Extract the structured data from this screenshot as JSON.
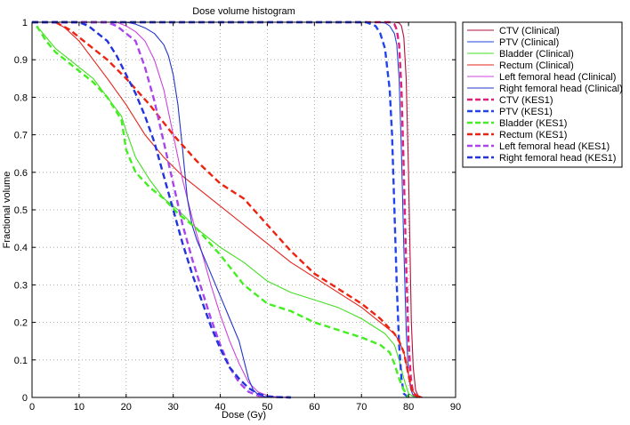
{
  "chart_data": {
    "type": "line",
    "title": "Dose volume histogram",
    "xlabel": "Dose (Gy)",
    "ylabel": "Fractional volume",
    "xlim": [
      0,
      90
    ],
    "ylim": [
      0,
      1
    ],
    "xticks": [
      0,
      10,
      20,
      30,
      40,
      50,
      60,
      70,
      80,
      90
    ],
    "yticks": [
      0,
      0.1,
      0.2,
      0.3,
      0.4,
      0.5,
      0.6,
      0.7,
      0.8,
      0.9,
      1
    ],
    "xtick_labels": [
      "0",
      "10",
      "20",
      "30",
      "40",
      "50",
      "60",
      "70",
      "80",
      "90"
    ],
    "ytick_labels": [
      "0",
      "0.1",
      "0.2",
      "0.3",
      "0.4",
      "0.5",
      "0.6",
      "0.7",
      "0.8",
      "0.9",
      "1"
    ],
    "grid": true,
    "legend_position": "outside-top-right",
    "series": [
      {
        "name": "CTV (Clinical)",
        "color": "#b0103a",
        "style": "solid",
        "x": [
          0,
          77,
          78,
          78.5,
          79,
          79.5,
          80,
          80.3,
          80.6,
          81,
          81.5,
          82,
          83
        ],
        "y": [
          1,
          1,
          0.998,
          0.99,
          0.96,
          0.85,
          0.6,
          0.4,
          0.2,
          0.08,
          0.02,
          0.005,
          0
        ]
      },
      {
        "name": "PTV (Clinical)",
        "color": "#2244dd",
        "style": "solid",
        "x": [
          0,
          73,
          75,
          76,
          77,
          77.5,
          78,
          78.5,
          79,
          79.5,
          80,
          80.5,
          81,
          82
        ],
        "y": [
          1,
          1,
          0.998,
          0.99,
          0.97,
          0.94,
          0.85,
          0.65,
          0.4,
          0.18,
          0.06,
          0.02,
          0.005,
          0
        ]
      },
      {
        "name": "Bladder (Clinical)",
        "color": "#44dd22",
        "style": "solid",
        "x": [
          1,
          3,
          5,
          8,
          10,
          13,
          16,
          19,
          20,
          22,
          25,
          28,
          31,
          35,
          40,
          45,
          50,
          55,
          60,
          65,
          70,
          75,
          77,
          78,
          79,
          80,
          81,
          82
        ],
        "y": [
          0.99,
          0.96,
          0.93,
          0.9,
          0.88,
          0.85,
          0.8,
          0.75,
          0.71,
          0.64,
          0.58,
          0.53,
          0.5,
          0.45,
          0.4,
          0.36,
          0.31,
          0.28,
          0.26,
          0.24,
          0.21,
          0.17,
          0.14,
          0.1,
          0.05,
          0.01,
          0.003,
          0
        ]
      },
      {
        "name": "Rectum (Clinical)",
        "color": "#e3241b",
        "style": "solid",
        "x": [
          5,
          7,
          10,
          13,
          16,
          20,
          24,
          28,
          32,
          36,
          40,
          45,
          50,
          55,
          60,
          65,
          70,
          74,
          77,
          78,
          79,
          79.5,
          80,
          80.5,
          81,
          82,
          83
        ],
        "y": [
          1,
          0.985,
          0.95,
          0.9,
          0.85,
          0.78,
          0.7,
          0.64,
          0.59,
          0.55,
          0.51,
          0.46,
          0.41,
          0.36,
          0.32,
          0.28,
          0.24,
          0.2,
          0.17,
          0.15,
          0.12,
          0.09,
          0.06,
          0.03,
          0.015,
          0.003,
          0
        ]
      },
      {
        "name": "Left femoral head (Clinical)",
        "color": "#cc44dd",
        "style": "solid",
        "x": [
          0,
          18,
          20,
          22,
          24,
          26,
          28,
          30,
          32,
          34,
          36,
          38,
          40,
          42,
          44,
          46,
          48,
          50,
          52,
          55
        ],
        "y": [
          1,
          1,
          0.99,
          0.975,
          0.95,
          0.9,
          0.82,
          0.7,
          0.58,
          0.48,
          0.39,
          0.3,
          0.22,
          0.15,
          0.09,
          0.04,
          0.015,
          0.005,
          0.001,
          0
        ]
      },
      {
        "name": "Right femoral head (Clinical)",
        "color": "#2233cc",
        "style": "solid",
        "x": [
          0,
          20,
          22,
          24,
          26,
          28,
          29,
          30,
          31,
          32,
          33,
          34,
          35,
          37,
          40,
          42,
          44,
          45,
          46,
          47,
          48,
          49,
          50,
          52
        ],
        "y": [
          1,
          1,
          0.995,
          0.985,
          0.97,
          0.94,
          0.91,
          0.86,
          0.78,
          0.66,
          0.53,
          0.46,
          0.42,
          0.36,
          0.27,
          0.21,
          0.15,
          0.1,
          0.05,
          0.02,
          0.008,
          0.003,
          0.001,
          0
        ]
      },
      {
        "name": "CTV (KES1)",
        "color": "#e0207a",
        "style": "dashed",
        "x": [
          0,
          76,
          77,
          77.5,
          78,
          78.5,
          79,
          79.5,
          80,
          80.5,
          81,
          82
        ],
        "y": [
          1,
          1,
          0.995,
          0.98,
          0.94,
          0.82,
          0.6,
          0.35,
          0.15,
          0.05,
          0.01,
          0
        ]
      },
      {
        "name": "PTV (KES1)",
        "color": "#2244ee",
        "style": "dashed",
        "x": [
          0,
          71,
          73,
          74,
          75,
          76,
          76.5,
          77,
          77.5,
          78,
          78.5,
          79,
          80
        ],
        "y": [
          1,
          1,
          0.99,
          0.97,
          0.93,
          0.82,
          0.7,
          0.5,
          0.3,
          0.14,
          0.05,
          0.01,
          0
        ]
      },
      {
        "name": "Bladder (KES1)",
        "color": "#44ee22",
        "style": "dashed",
        "x": [
          1,
          3,
          5,
          8,
          10,
          13,
          16,
          19,
          20,
          22,
          25,
          28,
          31,
          35,
          40,
          45,
          50,
          55,
          60,
          65,
          70,
          74,
          76,
          77,
          78,
          79,
          80
        ],
        "y": [
          0.99,
          0.95,
          0.92,
          0.89,
          0.87,
          0.84,
          0.8,
          0.74,
          0.66,
          0.6,
          0.56,
          0.53,
          0.49,
          0.45,
          0.38,
          0.3,
          0.25,
          0.23,
          0.2,
          0.18,
          0.16,
          0.14,
          0.12,
          0.09,
          0.05,
          0.02,
          0
        ]
      },
      {
        "name": "Rectum (KES1)",
        "color": "#ee2211",
        "style": "dashed",
        "x": [
          5,
          8,
          10,
          13,
          16,
          20,
          25,
          30,
          35,
          40,
          45,
          50,
          55,
          60,
          65,
          70,
          74,
          77,
          78,
          79,
          79.5,
          80,
          80.5,
          81,
          82,
          83
        ],
        "y": [
          1,
          0.98,
          0.96,
          0.93,
          0.9,
          0.85,
          0.78,
          0.7,
          0.63,
          0.57,
          0.53,
          0.46,
          0.39,
          0.33,
          0.29,
          0.25,
          0.21,
          0.17,
          0.15,
          0.12,
          0.09,
          0.06,
          0.03,
          0.01,
          0.002,
          0
        ]
      },
      {
        "name": "Left femoral head (KES1)",
        "color": "#aa44ee",
        "style": "dashed",
        "x": [
          0,
          16,
          18,
          20,
          22,
          24,
          26,
          28,
          30,
          32,
          34,
          36,
          38,
          40,
          42,
          44,
          46,
          48,
          50,
          52,
          55
        ],
        "y": [
          1,
          1,
          0.99,
          0.97,
          0.95,
          0.88,
          0.79,
          0.68,
          0.57,
          0.46,
          0.37,
          0.29,
          0.21,
          0.14,
          0.08,
          0.04,
          0.015,
          0.005,
          0.002,
          0.001,
          0
        ]
      },
      {
        "name": "Right femoral head (KES1)",
        "color": "#2233dd",
        "style": "dashed",
        "x": [
          0,
          10,
          12,
          14,
          16,
          18,
          20,
          22,
          24,
          26,
          28,
          30,
          32,
          34,
          36,
          38,
          40,
          42,
          44,
          46,
          48,
          50,
          52,
          55
        ],
        "y": [
          1,
          1,
          0.99,
          0.97,
          0.95,
          0.91,
          0.86,
          0.81,
          0.75,
          0.68,
          0.59,
          0.5,
          0.41,
          0.33,
          0.26,
          0.19,
          0.13,
          0.08,
          0.05,
          0.025,
          0.01,
          0.003,
          0.001,
          0
        ]
      }
    ]
  }
}
